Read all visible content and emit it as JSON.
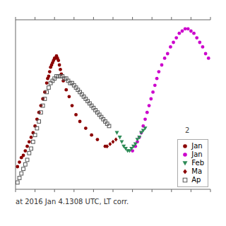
{
  "chart_data": {
    "type": "scatter",
    "annotations": [
      "2",
      "at 2016 Jan 4.1308 UTC, LT corr."
    ],
    "legend": "lower right",
    "tick_labels": false,
    "xlim": [
      0.0,
      1.0
    ],
    "xticks": [
      0,
      0.1,
      0.2,
      0.3,
      0.4,
      0.5,
      0.6,
      0.7,
      0.8,
      0.9,
      1.0
    ],
    "ylim": [
      0.85,
      0.1
    ],
    "series": [
      {
        "name": "Jan",
        "color": "#8B0000",
        "marker": "circle",
        "x": [
          0.01,
          0.02,
          0.03,
          0.04,
          0.05,
          0.06,
          0.07,
          0.08,
          0.09,
          0.1,
          0.11,
          0.12,
          0.13,
          0.14,
          0.15,
          0.16,
          0.165,
          0.17,
          0.175,
          0.18,
          0.185,
          0.19,
          0.195,
          0.2,
          0.205,
          0.21,
          0.215,
          0.22,
          0.225,
          0.23,
          0.235,
          0.245,
          0.26,
          0.275,
          0.29,
          0.31,
          0.33,
          0.36,
          0.39,
          0.42,
          0.46
        ],
        "values": [
          0.75,
          0.73,
          0.71,
          0.7,
          0.68,
          0.66,
          0.64,
          0.62,
          0.6,
          0.57,
          0.54,
          0.51,
          0.48,
          0.45,
          0.42,
          0.38,
          0.36,
          0.35,
          0.33,
          0.31,
          0.3,
          0.29,
          0.28,
          0.27,
          0.27,
          0.26,
          0.27,
          0.28,
          0.3,
          0.32,
          0.34,
          0.37,
          0.41,
          0.44,
          0.48,
          0.52,
          0.55,
          0.58,
          0.61,
          0.63,
          0.66
        ]
      },
      {
        "name": "Jan",
        "color": "#CC00CC",
        "marker": "circle",
        "x": [
          0.6,
          0.615,
          0.625,
          0.635,
          0.645,
          0.655,
          0.665,
          0.675,
          0.685,
          0.695,
          0.705,
          0.715,
          0.725,
          0.735,
          0.75,
          0.765,
          0.78,
          0.795,
          0.81,
          0.825,
          0.84,
          0.855,
          0.87,
          0.885,
          0.9,
          0.915,
          0.93,
          0.945,
          0.96,
          0.975,
          0.99
        ],
        "values": [
          0.68,
          0.66,
          0.64,
          0.62,
          0.6,
          0.57,
          0.54,
          0.51,
          0.48,
          0.45,
          0.42,
          0.39,
          0.36,
          0.33,
          0.3,
          0.27,
          0.25,
          0.22,
          0.2,
          0.18,
          0.16,
          0.15,
          0.14,
          0.14,
          0.15,
          0.16,
          0.18,
          0.2,
          0.22,
          0.25,
          0.27
        ]
      },
      {
        "name": "Feb",
        "color": "#2E8B57",
        "marker": "triangle-down",
        "x": [
          0.52,
          0.535,
          0.545,
          0.555,
          0.565,
          0.575,
          0.585,
          0.595,
          0.605,
          0.615,
          0.625,
          0.635,
          0.645,
          0.655,
          0.665
        ],
        "values": [
          0.6,
          0.62,
          0.64,
          0.66,
          0.67,
          0.68,
          0.68,
          0.67,
          0.66,
          0.65,
          0.63,
          0.62,
          0.6,
          0.59,
          0.58
        ]
      },
      {
        "name": "Ma",
        "color": "#8B0000",
        "marker": "diamond",
        "x": [
          0.47,
          0.485,
          0.5,
          0.515
        ],
        "values": [
          0.66,
          0.65,
          0.64,
          0.63
        ]
      },
      {
        "name": "Ap",
        "color": "#555555",
        "marker": "open-square",
        "x": [
          0.01,
          0.02,
          0.03,
          0.04,
          0.05,
          0.06,
          0.07,
          0.08,
          0.09,
          0.1,
          0.11,
          0.12,
          0.13,
          0.14,
          0.15,
          0.16,
          0.17,
          0.18,
          0.19,
          0.2,
          0.21,
          0.22,
          0.23,
          0.24,
          0.25,
          0.26,
          0.27,
          0.28,
          0.29,
          0.3,
          0.31,
          0.32,
          0.33,
          0.34,
          0.35,
          0.36,
          0.37,
          0.38,
          0.39,
          0.4,
          0.41,
          0.42,
          0.43,
          0.44,
          0.45,
          0.46,
          0.47,
          0.48
        ],
        "values": [
          0.82,
          0.8,
          0.78,
          0.76,
          0.74,
          0.72,
          0.69,
          0.67,
          0.64,
          0.61,
          0.58,
          0.55,
          0.51,
          0.48,
          0.45,
          0.42,
          0.4,
          0.38,
          0.37,
          0.36,
          0.35,
          0.35,
          0.35,
          0.35,
          0.36,
          0.36,
          0.37,
          0.38,
          0.38,
          0.39,
          0.4,
          0.41,
          0.42,
          0.43,
          0.44,
          0.45,
          0.46,
          0.47,
          0.48,
          0.49,
          0.5,
          0.51,
          0.52,
          0.53,
          0.54,
          0.55,
          0.56,
          0.57
        ]
      }
    ]
  }
}
